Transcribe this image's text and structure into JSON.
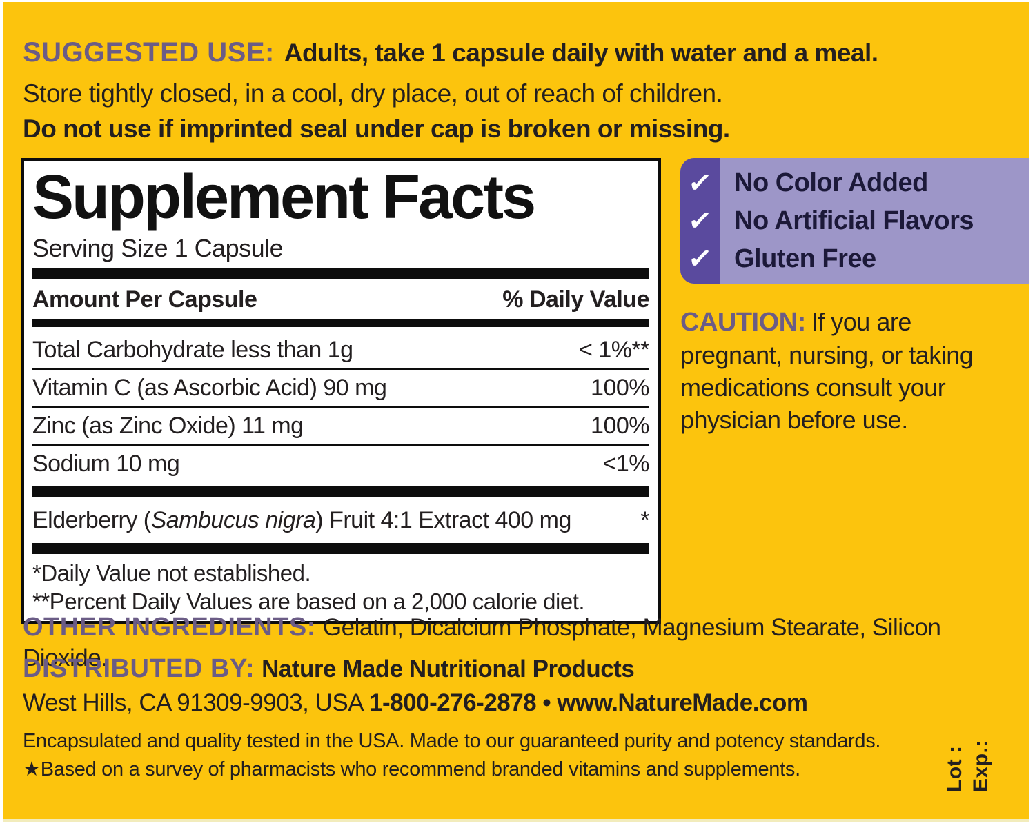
{
  "colors": {
    "background_yellow": "#FCC40D",
    "heading_purple": "#6B5C86",
    "claims_strip_purple": "#5A4A9E",
    "claims_panel_purple": "#9D96C8",
    "claims_text_navy": "#1C1939",
    "text_black": "#231F20"
  },
  "suggested_use": {
    "label": "SUGGESTED USE:",
    "directions": "Adults, take 1 capsule daily with water and a meal.",
    "storage": "Store tightly closed, in a cool, dry place, out of reach of children.",
    "seal_warning": "Do not use if imprinted seal under cap is broken or missing."
  },
  "panel": {
    "title": "Supplement Facts",
    "serving_size": "Serving Size 1 Capsule",
    "header": {
      "amount": "Amount Per Capsule",
      "daily_value": "% Daily Value"
    },
    "rows": [
      {
        "name": "Total Carbohydrate  less than 1g",
        "value": "< 1%**"
      },
      {
        "name": "Vitamin C (as Ascorbic Acid)  90 mg",
        "value": "100%"
      },
      {
        "name": "Zinc (as Zinc Oxide) 11 mg",
        "value": "100%"
      },
      {
        "name": "Sodium 10 mg",
        "value": "<1%"
      }
    ],
    "elderberry": {
      "pre": "Elderberry (",
      "italic": "Sambucus nigra",
      "post": ")  Fruit 4:1 Extract 400 mg",
      "value": "*"
    },
    "footnotes": [
      "*Daily Value not established.",
      "**Percent Daily Values are based on a 2,000 calorie diet."
    ]
  },
  "checklist": {
    "check_glyph": "✓",
    "items": [
      "No Color Added",
      "No Artificial Flavors",
      "Gluten Free"
    ]
  },
  "caution": {
    "label": "CAUTION:",
    "text": "If you are pregnant, nursing, or taking medications consult your physician before use."
  },
  "other_ingredients": {
    "label": "OTHER INGREDIENTS:",
    "text": "Gelatin, Dicalcium Phosphate, Magnesium Stearate, Silicon Dioxide."
  },
  "distributed_by": {
    "label": "DISTRIBUTED BY:",
    "company": "Nature Made Nutritional Products",
    "address": "West Hills, CA 91309-9903, USA",
    "phone_web": "1-800-276-2878 • www.NatureMade.com"
  },
  "quality": {
    "line1": "Encapsulated and quality tested in the USA. Made to our guaranteed purity and potency standards.",
    "line2": "★Based on a survey of pharmacists who recommend branded vitamins and supplements."
  },
  "lot_exp": {
    "lot": "Lot :",
    "exp": "Exp.:"
  }
}
